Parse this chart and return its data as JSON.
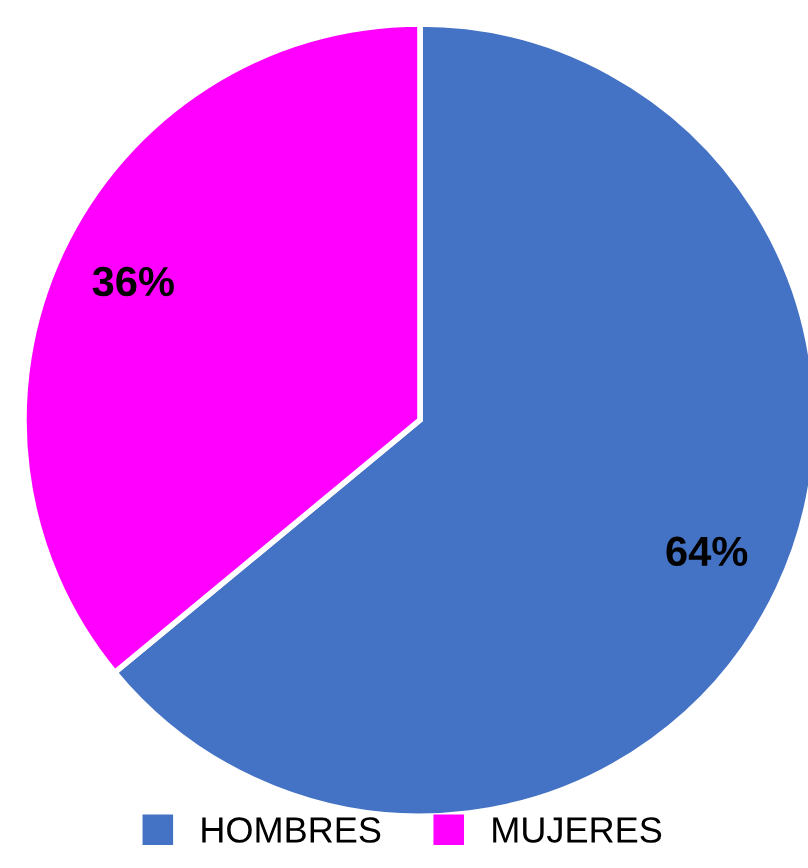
{
  "chart_data": {
    "type": "pie",
    "categories": [
      "HOMBRES",
      "MUJERES"
    ],
    "values": [
      64,
      36
    ],
    "colors": [
      "#4472c4",
      "#ff00ff"
    ],
    "value_labels": [
      "64%",
      "36%"
    ],
    "legend": "bottom"
  }
}
